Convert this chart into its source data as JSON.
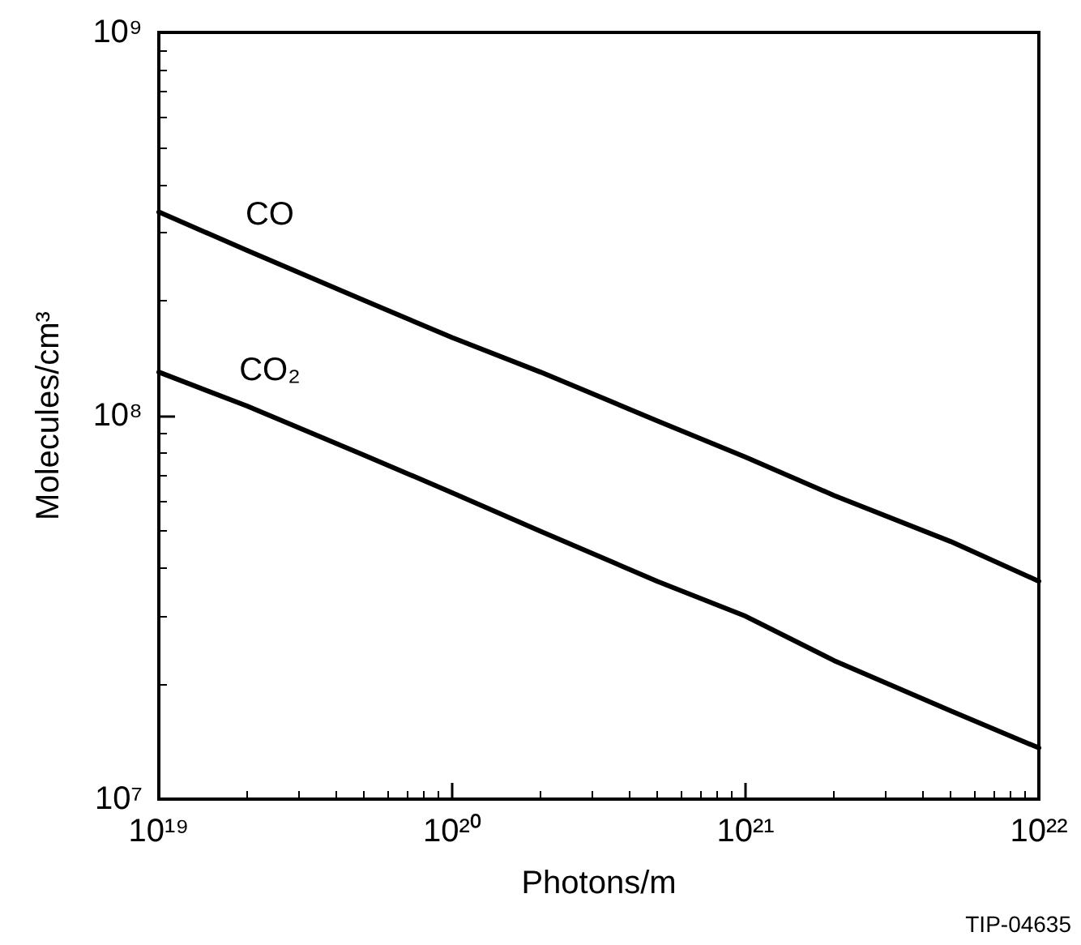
{
  "chart_data": {
    "type": "line",
    "xlabel": "Photons/m",
    "ylabel": "Molecules/cm³",
    "log": "xy",
    "grid": false,
    "legend": false,
    "marker": "none",
    "line_style": "solid",
    "x": [
      1e+19,
      2e+19,
      5e+19,
      1e+20,
      2e+20,
      5e+20,
      1e+21,
      2e+21,
      5e+21,
      1e+22
    ],
    "series": [
      {
        "name": "CO",
        "color": "#000000",
        "values": [
          340000000.0,
          270000000.0,
          200000000.0,
          160000000.0,
          130000000.0,
          97000000.0,
          78000000.0,
          62000000.0,
          47000000.0,
          37000000.0
        ]
      },
      {
        "name": "CO₂",
        "color": "#000000",
        "values": [
          130000000.0,
          106000000.0,
          79000000.0,
          63000000.0,
          50000000.0,
          37000000.0,
          30000000.0,
          23000000.0,
          17000000.0,
          13600000.0
        ]
      }
    ],
    "xlim": [
      1e+19,
      1e+22
    ],
    "ylim": [
      10000000.0,
      1000000000.0
    ],
    "xticks": [
      {
        "value": 1e+19,
        "label": "10¹⁹"
      },
      {
        "value": 1e+20,
        "label": "10²⁰"
      },
      {
        "value": 1e+21,
        "label": "10²¹"
      },
      {
        "value": 1e+22,
        "label": "10²²"
      }
    ],
    "yticks": [
      {
        "value": 10000000.0,
        "label": "10⁷"
      },
      {
        "value": 100000000.0,
        "label": "10⁸"
      },
      {
        "value": 1000000000.0,
        "label": "10⁹"
      }
    ],
    "annotations": [
      "TIP-04635"
    ]
  }
}
